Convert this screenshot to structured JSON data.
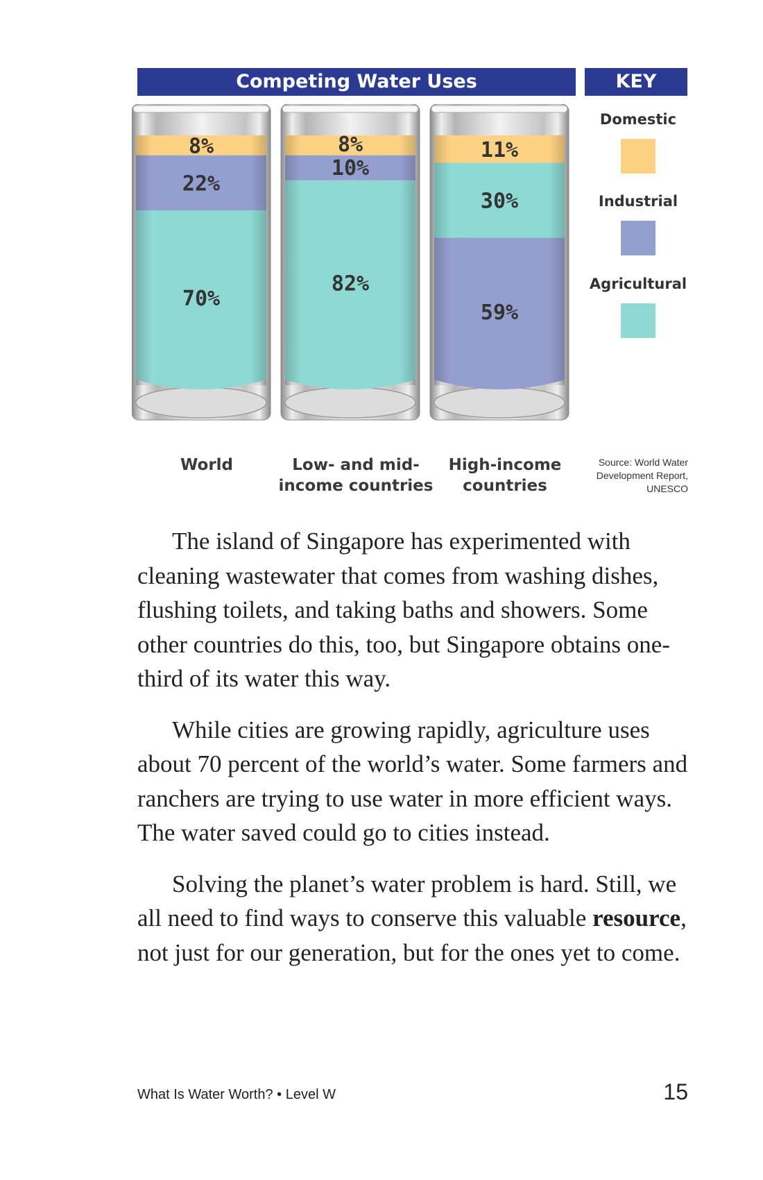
{
  "chart_title": "Competing Water Uses",
  "key": {
    "title": "KEY",
    "items": [
      {
        "label": "Domestic",
        "color": "#fdd282"
      },
      {
        "label": "Industrial",
        "color": "#959fcf"
      },
      {
        "label": "Agricultural",
        "color": "#8ed9d3"
      }
    ]
  },
  "chart_data": {
    "type": "bar",
    "stacked": true,
    "title": "Competing Water Uses",
    "categories": [
      "World",
      "Low- and mid-income countries",
      "High-income countries"
    ],
    "category_labels": [
      [
        "World"
      ],
      [
        "Low- and mid-",
        "income countries"
      ],
      [
        "High-income",
        "countries"
      ]
    ],
    "series": [
      {
        "name": "Domestic",
        "values": [
          8,
          8,
          11
        ],
        "color": "#fdd282"
      },
      {
        "name": "Industrial",
        "values": [
          22,
          10,
          59
        ],
        "color": "#959fcf"
      },
      {
        "name": "Agricultural",
        "values": [
          70,
          82,
          30
        ],
        "color": "#8ed9d3"
      }
    ],
    "stack_order_top_to_bottom": [
      [
        "Domestic",
        "Industrial",
        "Agricultural"
      ],
      [
        "Domestic",
        "Industrial",
        "Agricultural"
      ],
      [
        "Domestic",
        "Agricultural",
        "Industrial"
      ]
    ],
    "value_format": "percent",
    "legend": "right"
  },
  "source": [
    "Source: World Water",
    "Development Report,",
    "UNESCO"
  ],
  "paragraphs": [
    [
      "The island of Singapore has experimented with cleaning wastewater that comes from washing dishes, flushing toilets, and taking baths and showers. Some other countries do this, too, but Singapore obtains one-third of its water this way."
    ],
    [
      "While cities are growing rapidly, agriculture uses about 70 percent of the world’s water. Some farmers and ranchers are trying to use water in more efficient ways. The water saved could go to cities instead."
    ],
    [
      "Solving the planet’s water problem is hard. Still, we all need to find ways to conserve this valuable ",
      "resource",
      ", not just for our generation, but for the ones yet to come."
    ]
  ],
  "footer": {
    "book": "What Is Water Worth? • Level W",
    "page_number": "15"
  }
}
